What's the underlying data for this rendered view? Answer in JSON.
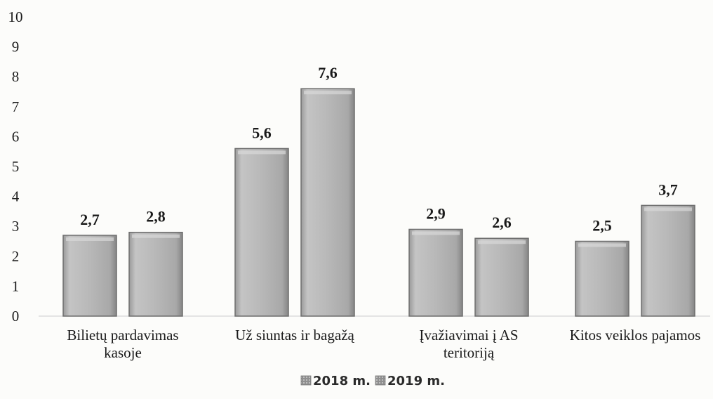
{
  "chart_data": {
    "type": "bar",
    "categories": [
      [
        "Bilietų pardavimas",
        "kasoje"
      ],
      [
        "Už siuntas ir bagažą"
      ],
      [
        "Įvažiavimai į AS",
        "teritoriją"
      ],
      [
        "Kitos veiklos pajamos"
      ]
    ],
    "series": [
      {
        "name": "2018 m.",
        "values": [
          2.7,
          5.6,
          2.9,
          2.5
        ],
        "labels": [
          "2,7",
          "5,6",
          "2,9",
          "2,5"
        ]
      },
      {
        "name": "2019 m.",
        "values": [
          2.8,
          7.6,
          2.6,
          3.7
        ],
        "labels": [
          "2,8",
          "7,6",
          "2,6",
          "3,7"
        ]
      }
    ],
    "ylim": [
      0,
      10
    ],
    "yticks": [
      "0",
      "1",
      "2",
      "3",
      "4",
      "5",
      "6",
      "7",
      "8",
      "9",
      "10"
    ],
    "grid": false,
    "legend_position": "bottom",
    "colors": {
      "bar": "#b4b4b4",
      "bar_edge": "#6e6e6e",
      "bar_highlight": "#d9d9d9",
      "bar_shadow": "#8c8c8c"
    }
  }
}
